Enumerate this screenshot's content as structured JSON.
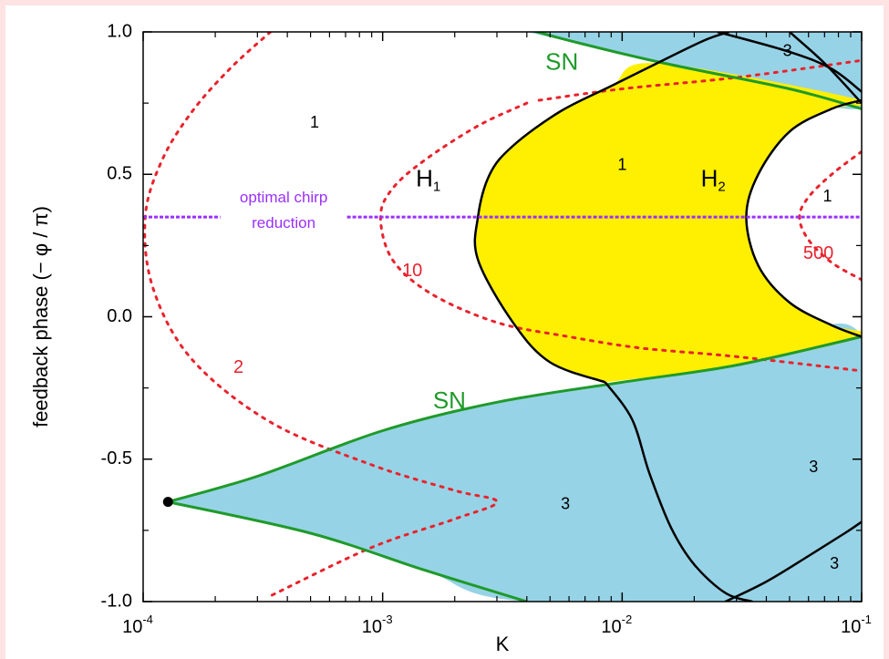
{
  "chart_data": {
    "type": "other",
    "title": "",
    "xlabel": "K",
    "ylabel": "feedback phase (− φ / π)",
    "xscale": "log",
    "xlim": [
      0.0001,
      0.1
    ],
    "ylim": [
      -1.0,
      1.0
    ],
    "xticks": [
      {
        "value": 0.0001,
        "base": "10",
        "exp": "-4"
      },
      {
        "value": 0.001,
        "base": "10",
        "exp": "-3"
      },
      {
        "value": 0.01,
        "base": "10",
        "exp": "-2"
      },
      {
        "value": 0.1,
        "base": "10",
        "exp": "-1"
      }
    ],
    "yticks": [
      {
        "value": 1.0,
        "label": "1.0"
      },
      {
        "value": 0.5,
        "label": "0.5"
      },
      {
        "value": 0.0,
        "label": "0.0"
      },
      {
        "value": -0.5,
        "label": "-0.5"
      },
      {
        "value": -1.0,
        "label": "-1.0"
      }
    ],
    "colors": {
      "sn_region": "#97d3e6",
      "hopf_region": "#ffef00",
      "sn_curve": "#1f9a2a",
      "hopf_curve": "#000000",
      "chirp_contour": "#e8232d",
      "optimal_line": "#9b30ff"
    },
    "regions": [
      {
        "name": "SN",
        "color": "sn_region",
        "outline": [
          [
            0.000127,
            -0.65
          ],
          [
            0.0003,
            -0.56
          ],
          [
            0.001,
            -0.4
          ],
          [
            0.003,
            -0.3
          ],
          [
            0.01,
            -0.23
          ],
          [
            0.03,
            -0.17
          ],
          [
            0.1,
            -0.07
          ],
          [
            0.1,
            -1.0
          ],
          [
            0.004,
            -1.0
          ],
          [
            0.0015,
            -0.89
          ],
          [
            0.0005,
            -0.76
          ],
          [
            0.000127,
            -0.65
          ]
        ]
      },
      {
        "name": "SN",
        "color": "sn_region",
        "outline": [
          [
            0.004,
            1.0
          ],
          [
            0.1,
            1.0
          ],
          [
            0.1,
            0.73
          ],
          [
            0.015,
            0.89
          ],
          [
            0.004,
            1.0
          ]
        ]
      },
      {
        "name": "H",
        "color": "hopf_region",
        "outline": [
          [
            0.0085,
            -0.23
          ],
          [
            0.005,
            -0.16
          ],
          [
            0.0035,
            -0.02
          ],
          [
            0.0025,
            0.2
          ],
          [
            0.0025,
            0.35
          ],
          [
            0.0028,
            0.5
          ],
          [
            0.0035,
            0.6
          ],
          [
            0.0055,
            0.72
          ],
          [
            0.009,
            0.81
          ],
          [
            0.014,
            0.89
          ],
          [
            0.1,
            0.76
          ],
          [
            0.075,
            0.73
          ],
          [
            0.05,
            0.65
          ],
          [
            0.037,
            0.5
          ],
          [
            0.033,
            0.35
          ],
          [
            0.037,
            0.18
          ],
          [
            0.05,
            0.05
          ],
          [
            0.075,
            -0.03
          ],
          [
            0.1,
            -0.07
          ],
          [
            0.03,
            -0.17
          ],
          [
            0.0085,
            -0.23
          ]
        ]
      }
    ],
    "curves": [
      {
        "name": "SN",
        "kind": "sn",
        "points": [
          [
            0.000127,
            -0.65
          ],
          [
            0.0003,
            -0.56
          ],
          [
            0.001,
            -0.4
          ],
          [
            0.003,
            -0.3
          ],
          [
            0.01,
            -0.23
          ],
          [
            0.03,
            -0.17
          ],
          [
            0.1,
            -0.07
          ]
        ]
      },
      {
        "name": "SN",
        "kind": "sn",
        "points": [
          [
            0.000127,
            -0.65
          ],
          [
            0.0005,
            -0.76
          ],
          [
            0.0015,
            -0.89
          ],
          [
            0.004,
            -1.0
          ]
        ]
      },
      {
        "name": "SN",
        "kind": "sn",
        "points": [
          [
            0.0033,
            1.03
          ],
          [
            0.006,
            0.97
          ],
          [
            0.015,
            0.89
          ],
          [
            0.05,
            0.8
          ],
          [
            0.1,
            0.73
          ]
        ]
      },
      {
        "name": "H1",
        "kind": "hopf",
        "points": [
          [
            0.0085,
            -0.23
          ],
          [
            0.005,
            -0.16
          ],
          [
            0.0035,
            -0.02
          ],
          [
            0.0025,
            0.2
          ],
          [
            0.0025,
            0.35
          ],
          [
            0.0028,
            0.5
          ],
          [
            0.0035,
            0.6
          ],
          [
            0.0055,
            0.72
          ],
          [
            0.009,
            0.81
          ],
          [
            0.014,
            0.89
          ],
          [
            0.022,
            0.97
          ],
          [
            0.028,
            1.0
          ]
        ]
      },
      {
        "name": "H2",
        "kind": "hopf",
        "points": [
          [
            0.1,
            0.76
          ],
          [
            0.075,
            0.73
          ],
          [
            0.05,
            0.65
          ],
          [
            0.037,
            0.5
          ],
          [
            0.033,
            0.35
          ],
          [
            0.037,
            0.18
          ],
          [
            0.05,
            0.05
          ],
          [
            0.075,
            -0.03
          ],
          [
            0.1,
            -0.07
          ]
        ]
      },
      {
        "name": "",
        "kind": "hopf",
        "points": [
          [
            0.0085,
            -0.23
          ],
          [
            0.011,
            -0.36
          ],
          [
            0.013,
            -0.55
          ],
          [
            0.016,
            -0.74
          ],
          [
            0.02,
            -0.87
          ],
          [
            0.027,
            -0.97
          ],
          [
            0.035,
            -1.0
          ]
        ]
      },
      {
        "name": "",
        "kind": "hopf",
        "points": [
          [
            0.027,
            -1.0
          ],
          [
            0.04,
            -0.93
          ],
          [
            0.06,
            -0.84
          ],
          [
            0.085,
            -0.76
          ],
          [
            0.1,
            -0.72
          ]
        ]
      },
      {
        "name": "",
        "kind": "hopf",
        "points": [
          [
            0.025,
            1.0
          ],
          [
            0.05,
            0.93
          ],
          [
            0.075,
            0.87
          ],
          [
            0.1,
            0.79
          ]
        ]
      },
      {
        "name": "",
        "kind": "hopf",
        "points": [
          [
            0.05,
            1.0
          ],
          [
            0.07,
            0.89
          ],
          [
            0.1,
            0.75
          ]
        ]
      },
      {
        "name": "2",
        "kind": "chirp",
        "points": [
          [
            0.00034,
            1.0
          ],
          [
            0.00023,
            0.87
          ],
          [
            0.00016,
            0.72
          ],
          [
            0.00012,
            0.55
          ],
          [
            0.000102,
            0.35
          ],
          [
            0.00011,
            0.1
          ],
          [
            0.00016,
            -0.15
          ],
          [
            0.00034,
            -0.37
          ],
          [
            0.0009,
            -0.52
          ],
          [
            0.002,
            -0.61
          ],
          [
            0.003,
            -0.65
          ],
          [
            0.002,
            -0.71
          ],
          [
            0.0009,
            -0.81
          ],
          [
            0.00034,
            -0.98
          ]
        ]
      },
      {
        "name": "10",
        "kind": "chirp",
        "points": [
          [
            0.004,
            0.75
          ],
          [
            0.0025,
            0.67
          ],
          [
            0.0015,
            0.55
          ],
          [
            0.0011,
            0.45
          ],
          [
            0.00098,
            0.35
          ],
          [
            0.0011,
            0.2
          ],
          [
            0.0016,
            0.08
          ],
          [
            0.003,
            -0.02
          ],
          [
            0.006,
            -0.07
          ],
          [
            0.012,
            -0.11
          ],
          [
            0.03,
            -0.14
          ],
          [
            0.1,
            -0.19
          ]
        ]
      },
      {
        "name": "",
        "kind": "chirp",
        "points": [
          [
            0.0045,
            0.76
          ],
          [
            0.01,
            0.8
          ],
          [
            0.03,
            0.84
          ],
          [
            0.1,
            0.9
          ]
        ]
      },
      {
        "name": "500",
        "kind": "chirp",
        "points": [
          [
            0.1,
            0.58
          ],
          [
            0.075,
            0.5
          ],
          [
            0.06,
            0.42
          ],
          [
            0.055,
            0.35
          ],
          [
            0.06,
            0.27
          ],
          [
            0.075,
            0.19
          ],
          [
            0.1,
            0.13
          ]
        ]
      }
    ],
    "reference_line": {
      "y": 0.35,
      "x_segments": [
        [
          0.0001,
          0.00021
        ],
        [
          0.00071,
          0.1
        ]
      ],
      "label_lines": [
        "optimal chirp",
        "reduction"
      ]
    },
    "point_marker": {
      "x": 0.000127,
      "y": -0.65
    },
    "annotations": [
      {
        "text": "1",
        "x": 0.00052,
        "y": 0.68,
        "color": "#000000",
        "size": "small"
      },
      {
        "text": "1",
        "x": 0.01,
        "y": 0.53,
        "color": "#000000",
        "size": "small"
      },
      {
        "text": "1",
        "x": 0.072,
        "y": 0.42,
        "color": "#000000",
        "size": "small"
      },
      {
        "text": "3",
        "x": 0.049,
        "y": 0.93,
        "color": "#000000",
        "size": "small"
      },
      {
        "text": "3",
        "x": 0.0058,
        "y": -0.66,
        "color": "#000000",
        "size": "small"
      },
      {
        "text": "3",
        "x": 0.063,
        "y": -0.53,
        "color": "#000000",
        "size": "small"
      },
      {
        "text": "3",
        "x": 0.077,
        "y": -0.87,
        "color": "#000000",
        "size": "small"
      },
      {
        "text": "2",
        "x": 0.00025,
        "y": -0.18,
        "color": "#e8232d",
        "size": "medium"
      },
      {
        "text": "10",
        "x": 0.00133,
        "y": 0.16,
        "color": "#e8232d",
        "size": "medium"
      },
      {
        "text": "500",
        "x": 0.066,
        "y": 0.22,
        "color": "#e8232d",
        "size": "medium"
      },
      {
        "text": "SN",
        "x": 0.0056,
        "y": 0.89,
        "color": "#1f9a2a",
        "size": "large"
      },
      {
        "text": "SN",
        "x": 0.0019,
        "y": -0.3,
        "color": "#1f9a2a",
        "size": "large"
      },
      {
        "text": "H",
        "sub": "1",
        "x": 0.00155,
        "y": 0.48,
        "color": "#000000",
        "size": "large"
      },
      {
        "text": "H",
        "sub": "2",
        "x": 0.024,
        "y": 0.48,
        "color": "#000000",
        "size": "large"
      }
    ]
  }
}
